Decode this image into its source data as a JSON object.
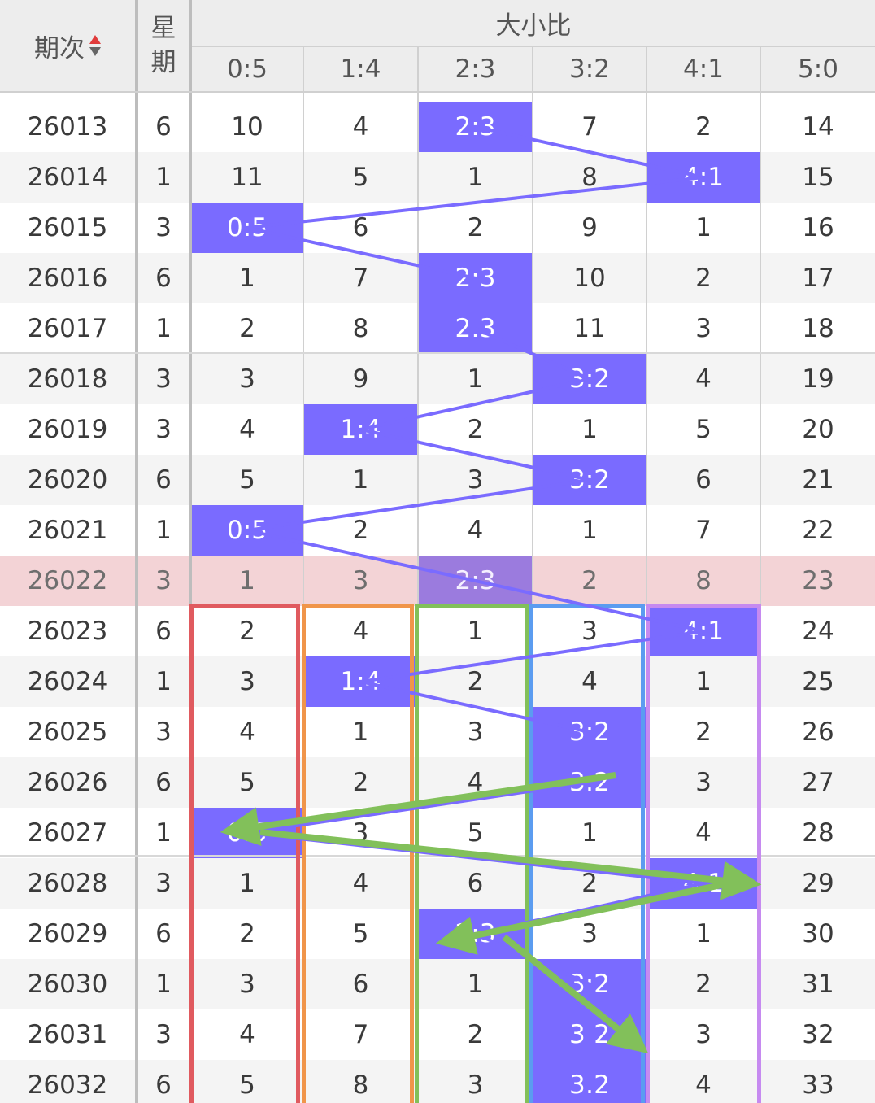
{
  "header": {
    "period_label": "期次",
    "weekday_label": "星\n期",
    "group_label": "大小比",
    "ratios": [
      "0:5",
      "1:4",
      "2:3",
      "3:2",
      "4:1",
      "5:0"
    ]
  },
  "colors": {
    "mark": "#7a6bff",
    "mark_highlight_row": "#9b7bde",
    "highlight_row_bg": "#f3d3d6",
    "sort_up": "#e03b3b",
    "box_0_5": "#e05a5f",
    "box_1_4": "#f0954a",
    "box_2_3": "#82c05a",
    "box_3_2": "#5b9cf0",
    "box_4_1": "#c68af0",
    "arrow": "#82c05a",
    "trend_line": "#7a6bff"
  },
  "highlight_row_period": "26022",
  "rows": [
    {
      "period": "26013",
      "weekday": "6",
      "cells": [
        "10",
        "4",
        "2:3",
        "7",
        "2",
        "14"
      ],
      "mark": 2
    },
    {
      "period": "26014",
      "weekday": "1",
      "cells": [
        "11",
        "5",
        "1",
        "8",
        "4:1",
        "15"
      ],
      "mark": 4
    },
    {
      "period": "26015",
      "weekday": "3",
      "cells": [
        "0:5",
        "6",
        "2",
        "9",
        "1",
        "16"
      ],
      "mark": 0
    },
    {
      "period": "26016",
      "weekday": "6",
      "cells": [
        "1",
        "7",
        "2:3",
        "10",
        "2",
        "17"
      ],
      "mark": 2
    },
    {
      "period": "26017",
      "weekday": "1",
      "cells": [
        "2",
        "8",
        "2:3",
        "11",
        "3",
        "18"
      ],
      "mark": 2
    },
    {
      "period": "26018",
      "weekday": "3",
      "cells": [
        "3",
        "9",
        "1",
        "3:2",
        "4",
        "19"
      ],
      "mark": 3
    },
    {
      "period": "26019",
      "weekday": "3",
      "cells": [
        "4",
        "1:4",
        "2",
        "1",
        "5",
        "20"
      ],
      "mark": 1
    },
    {
      "period": "26020",
      "weekday": "6",
      "cells": [
        "5",
        "1",
        "3",
        "3:2",
        "6",
        "21"
      ],
      "mark": 3
    },
    {
      "period": "26021",
      "weekday": "1",
      "cells": [
        "0:5",
        "2",
        "4",
        "1",
        "7",
        "22"
      ],
      "mark": 0
    },
    {
      "period": "26022",
      "weekday": "3",
      "cells": [
        "1",
        "3",
        "2:3",
        "2",
        "8",
        "23"
      ],
      "mark": 2
    },
    {
      "period": "26023",
      "weekday": "6",
      "cells": [
        "2",
        "4",
        "1",
        "3",
        "4:1",
        "24"
      ],
      "mark": 4
    },
    {
      "period": "26024",
      "weekday": "1",
      "cells": [
        "3",
        "1:4",
        "2",
        "4",
        "1",
        "25"
      ],
      "mark": 1
    },
    {
      "period": "26025",
      "weekday": "3",
      "cells": [
        "4",
        "1",
        "3",
        "3:2",
        "2",
        "26"
      ],
      "mark": 3
    },
    {
      "period": "26026",
      "weekday": "6",
      "cells": [
        "5",
        "2",
        "4",
        "3:2",
        "3",
        "27"
      ],
      "mark": 3
    },
    {
      "period": "26027",
      "weekday": "1",
      "cells": [
        "0:5",
        "3",
        "5",
        "1",
        "4",
        "28"
      ],
      "mark": 0
    },
    {
      "period": "26028",
      "weekday": "3",
      "cells": [
        "1",
        "4",
        "6",
        "2",
        "4:1",
        "29"
      ],
      "mark": 4
    },
    {
      "period": "26029",
      "weekday": "6",
      "cells": [
        "2",
        "5",
        "2:3",
        "3",
        "1",
        "30"
      ],
      "mark": 2
    },
    {
      "period": "26030",
      "weekday": "1",
      "cells": [
        "3",
        "6",
        "1",
        "3:2",
        "2",
        "31"
      ],
      "mark": 3
    },
    {
      "period": "26031",
      "weekday": "3",
      "cells": [
        "4",
        "7",
        "2",
        "3:2",
        "3",
        "32"
      ],
      "mark": 3
    },
    {
      "period": "26032",
      "weekday": "6",
      "cells": [
        "5",
        "8",
        "3",
        "3:2",
        "4",
        "33"
      ],
      "mark": 3
    }
  ]
}
